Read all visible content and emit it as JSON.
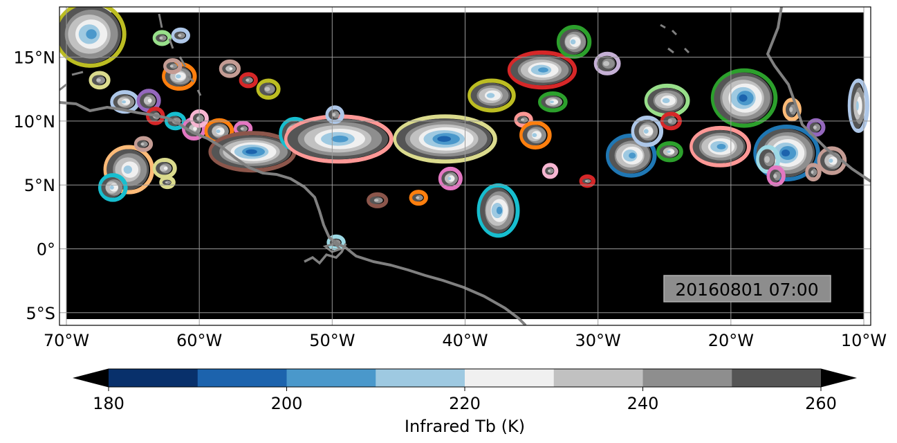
{
  "map": {
    "lon_range": [
      -70,
      -10
    ],
    "lat_range": [
      -5.5,
      18.5
    ],
    "timestamp": "20160801 07:00",
    "x_ticks": [
      {
        "lon": -70,
        "label": "70°W"
      },
      {
        "lon": -60,
        "label": "60°W"
      },
      {
        "lon": -50,
        "label": "50°W"
      },
      {
        "lon": -40,
        "label": "40°W"
      },
      {
        "lon": -30,
        "label": "30°W"
      },
      {
        "lon": -20,
        "label": "20°W"
      },
      {
        "lon": -10,
        "label": "10°W"
      }
    ],
    "y_ticks": [
      {
        "lat": 15,
        "label": "15°N"
      },
      {
        "lat": 10,
        "label": "10°N"
      },
      {
        "lat": 5,
        "label": "5°N"
      },
      {
        "lat": 0,
        "label": "0°"
      },
      {
        "lat": -5,
        "label": "5°S"
      }
    ],
    "background_color": "#000000",
    "coastline_color": "#808080",
    "gridline_color": "#9a9a9a"
  },
  "colorbar": {
    "label": "Infrared Tb (K)",
    "ticks": [
      {
        "value": 180,
        "label": "180"
      },
      {
        "value": 200,
        "label": "200"
      },
      {
        "value": 220,
        "label": "220"
      },
      {
        "value": 240,
        "label": "240"
      },
      {
        "value": 260,
        "label": "260"
      }
    ],
    "bins": [
      {
        "from": 180,
        "to": 190,
        "color": "#08306b"
      },
      {
        "from": 190,
        "to": 200,
        "color": "#1c63ad"
      },
      {
        "from": 200,
        "to": 210,
        "color": "#4a98cb"
      },
      {
        "from": 210,
        "to": 220,
        "color": "#9ec9e1"
      },
      {
        "from": 220,
        "to": 230,
        "color": "#f0f0f0"
      },
      {
        "from": 230,
        "to": 240,
        "color": "#c1c1c1"
      },
      {
        "from": 240,
        "to": 250,
        "color": "#8e8e8e"
      },
      {
        "from": 250,
        "to": 260,
        "color": "#555555"
      }
    ],
    "under_color": "#000000",
    "over_color": "#000000"
  },
  "clouds": [
    {
      "lon": -68.2,
      "lat": 16.8,
      "rx": 2.4,
      "ry": 2.3,
      "core": 2,
      "outline": "#bcbd22"
    },
    {
      "lon": -62.8,
      "lat": 16.5,
      "rx": 0.4,
      "ry": 0.3,
      "core": 5,
      "outline": "#98df8a"
    },
    {
      "lon": -61.4,
      "lat": 16.7,
      "rx": 0.4,
      "ry": 0.3,
      "core": 5,
      "outline": "#aec7e8"
    },
    {
      "lon": -67.5,
      "lat": 13.2,
      "rx": 0.5,
      "ry": 0.4,
      "core": 5,
      "outline": "#dbdb8d"
    },
    {
      "lon": -61.5,
      "lat": 13.5,
      "rx": 1.0,
      "ry": 0.8,
      "core": 3,
      "outline": "#ff7f0e"
    },
    {
      "lon": -62.0,
      "lat": 14.3,
      "rx": 0.4,
      "ry": 0.3,
      "core": 5,
      "outline": "#c49c94"
    },
    {
      "lon": -57.7,
      "lat": 14.1,
      "rx": 0.5,
      "ry": 0.4,
      "core": 4,
      "outline": "#c49c94"
    },
    {
      "lon": -56.3,
      "lat": 13.2,
      "rx": 0.4,
      "ry": 0.3,
      "core": 5,
      "outline": "#d62728"
    },
    {
      "lon": -54.8,
      "lat": 12.5,
      "rx": 0.6,
      "ry": 0.5,
      "core": 5,
      "outline": "#bcbd22"
    },
    {
      "lon": -65.6,
      "lat": 11.5,
      "rx": 0.8,
      "ry": 0.6,
      "core": 3,
      "outline": "#aec7e8"
    },
    {
      "lon": -63.8,
      "lat": 11.6,
      "rx": 0.6,
      "ry": 0.6,
      "core": 4,
      "outline": "#9467bd"
    },
    {
      "lon": -63.3,
      "lat": 10.4,
      "rx": 0.4,
      "ry": 0.4,
      "core": 5,
      "outline": "#d62728"
    },
    {
      "lon": -61.8,
      "lat": 10.0,
      "rx": 0.5,
      "ry": 0.4,
      "core": 5,
      "outline": "#17becf"
    },
    {
      "lon": -60.4,
      "lat": 9.4,
      "rx": 0.6,
      "ry": 0.6,
      "core": 4,
      "outline": "#e377c2"
    },
    {
      "lon": -60.0,
      "lat": 10.2,
      "rx": 0.4,
      "ry": 0.4,
      "core": 5,
      "outline": "#f7b6d2"
    },
    {
      "lon": -58.5,
      "lat": 9.2,
      "rx": 0.8,
      "ry": 0.7,
      "core": 3,
      "outline": "#ff7f0e"
    },
    {
      "lon": -56.7,
      "lat": 9.4,
      "rx": 0.4,
      "ry": 0.3,
      "core": 5,
      "outline": "#e377c2"
    },
    {
      "lon": -56.0,
      "lat": 7.6,
      "rx": 3.0,
      "ry": 1.3,
      "core": 1,
      "outline": "#8c564b"
    },
    {
      "lon": -52.8,
      "lat": 9.0,
      "rx": 0.9,
      "ry": 1.0,
      "core": 2,
      "outline": "#17becf"
    },
    {
      "lon": -49.5,
      "lat": 8.6,
      "rx": 3.8,
      "ry": 1.6,
      "core": 2,
      "outline": "#ff9896"
    },
    {
      "lon": -41.5,
      "lat": 8.6,
      "rx": 3.6,
      "ry": 1.6,
      "core": 1,
      "outline": "#dbdb8d"
    },
    {
      "lon": -49.8,
      "lat": 10.5,
      "rx": 0.4,
      "ry": 0.4,
      "core": 5,
      "outline": "#aec7e8"
    },
    {
      "lon": -41.1,
      "lat": 5.5,
      "rx": 0.6,
      "ry": 0.6,
      "core": 3,
      "outline": "#e377c2"
    },
    {
      "lon": -46.6,
      "lat": 3.8,
      "rx": 0.5,
      "ry": 0.3,
      "core": 5,
      "outline": "#8c564b"
    },
    {
      "lon": -43.5,
      "lat": 4.0,
      "rx": 0.4,
      "ry": 0.3,
      "core": 5,
      "outline": "#ff7f0e"
    },
    {
      "lon": -37.5,
      "lat": 3.0,
      "rx": 1.3,
      "ry": 1.8,
      "core": 2,
      "outline": "#17becf"
    },
    {
      "lon": -49.7,
      "lat": 0.5,
      "rx": 0.4,
      "ry": 0.3,
      "core": 5,
      "outline": "#9edae5"
    },
    {
      "lon": -34.2,
      "lat": 14.0,
      "rx": 2.3,
      "ry": 1.2,
      "core": 2,
      "outline": "#d62728"
    },
    {
      "lon": -31.8,
      "lat": 16.2,
      "rx": 1.0,
      "ry": 1.0,
      "core": 3,
      "outline": "#2ca02c"
    },
    {
      "lon": -29.3,
      "lat": 14.5,
      "rx": 0.7,
      "ry": 0.6,
      "core": 5,
      "outline": "#c5b0d5"
    },
    {
      "lon": -38.0,
      "lat": 12.0,
      "rx": 1.5,
      "ry": 1.0,
      "core": 3,
      "outline": "#bcbd22"
    },
    {
      "lon": -33.4,
      "lat": 11.5,
      "rx": 0.8,
      "ry": 0.5,
      "core": 3,
      "outline": "#2ca02c"
    },
    {
      "lon": -35.6,
      "lat": 10.1,
      "rx": 0.4,
      "ry": 0.3,
      "core": 5,
      "outline": "#ff9896"
    },
    {
      "lon": -34.7,
      "lat": 8.9,
      "rx": 0.9,
      "ry": 0.8,
      "core": 3,
      "outline": "#ff7f0e"
    },
    {
      "lon": -33.6,
      "lat": 6.1,
      "rx": 0.3,
      "ry": 0.3,
      "core": 5,
      "outline": "#f7b6d2"
    },
    {
      "lon": -30.8,
      "lat": 5.3,
      "rx": 0.3,
      "ry": 0.2,
      "core": 5,
      "outline": "#d62728"
    },
    {
      "lon": -27.5,
      "lat": 7.3,
      "rx": 1.6,
      "ry": 1.4,
      "core": 2,
      "outline": "#1f77b4"
    },
    {
      "lon": -26.3,
      "lat": 9.2,
      "rx": 0.9,
      "ry": 0.9,
      "core": 3,
      "outline": "#aec7e8"
    },
    {
      "lon": -24.8,
      "lat": 11.6,
      "rx": 1.4,
      "ry": 1.0,
      "core": 3,
      "outline": "#98df8a"
    },
    {
      "lon": -24.5,
      "lat": 10.0,
      "rx": 0.5,
      "ry": 0.4,
      "core": 5,
      "outline": "#d62728"
    },
    {
      "lon": -24.6,
      "lat": 7.6,
      "rx": 0.7,
      "ry": 0.5,
      "core": 3,
      "outline": "#2ca02c"
    },
    {
      "lon": -20.8,
      "lat": 8.0,
      "rx": 2.0,
      "ry": 1.3,
      "core": 2,
      "outline": "#ff9896"
    },
    {
      "lon": -19.0,
      "lat": 11.8,
      "rx": 2.2,
      "ry": 2.0,
      "core": 1,
      "outline": "#2ca02c"
    },
    {
      "lon": -15.4,
      "lat": 10.9,
      "rx": 0.4,
      "ry": 0.6,
      "core": 5,
      "outline": "#ffbb78"
    },
    {
      "lon": -15.8,
      "lat": 7.5,
      "rx": 2.2,
      "ry": 1.9,
      "core": 1,
      "outline": "#1f77b4"
    },
    {
      "lon": -17.2,
      "lat": 7.0,
      "rx": 0.6,
      "ry": 0.8,
      "core": 5,
      "outline": "#9edae5"
    },
    {
      "lon": -16.6,
      "lat": 5.7,
      "rx": 0.4,
      "ry": 0.5,
      "core": 5,
      "outline": "#e377c2"
    },
    {
      "lon": -13.6,
      "lat": 9.5,
      "rx": 0.4,
      "ry": 0.4,
      "core": 5,
      "outline": "#9467bd"
    },
    {
      "lon": -12.4,
      "lat": 6.9,
      "rx": 0.8,
      "ry": 0.8,
      "core": 3,
      "outline": "#c49c94"
    },
    {
      "lon": -13.8,
      "lat": 6.0,
      "rx": 0.3,
      "ry": 0.4,
      "core": 5,
      "outline": "#c49c94"
    },
    {
      "lon": -10.4,
      "lat": 11.2,
      "rx": 0.5,
      "ry": 1.8,
      "core": 3,
      "outline": "#aec7e8"
    },
    {
      "lon": -65.3,
      "lat": 6.2,
      "rx": 1.6,
      "ry": 1.6,
      "core": 3,
      "outline": "#ffbb78"
    },
    {
      "lon": -66.5,
      "lat": 4.8,
      "rx": 0.8,
      "ry": 0.8,
      "core": 3,
      "outline": "#17becf"
    },
    {
      "lon": -64.2,
      "lat": 8.2,
      "rx": 0.4,
      "ry": 0.3,
      "core": 5,
      "outline": "#c49c94"
    },
    {
      "lon": -62.6,
      "lat": 6.3,
      "rx": 0.6,
      "ry": 0.5,
      "core": 4,
      "outline": "#dbdb8d"
    },
    {
      "lon": -62.4,
      "lat": 5.2,
      "rx": 0.3,
      "ry": 0.2,
      "core": 5,
      "outline": "#dbdb8d"
    }
  ]
}
